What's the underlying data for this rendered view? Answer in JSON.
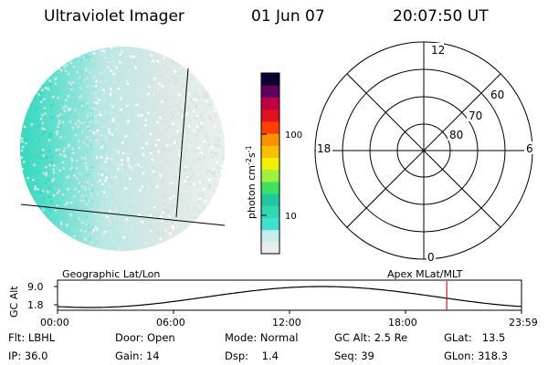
{
  "header": {
    "title": "Ultraviolet Imager",
    "date": "01 Jun 07",
    "time": "20:07:50 UT"
  },
  "colorbar": {
    "unit_base": "photon cm",
    "unit_exp1": "-2",
    "unit_mid": "s",
    "unit_exp2": "-1",
    "ticks": [
      "100",
      "10"
    ],
    "tick_values": [
      100,
      10
    ],
    "colors": [
      "#e8eef0",
      "#c8ecec",
      "#40e0d0",
      "#30d8b0",
      "#20c8a0",
      "#40e060",
      "#a0f040",
      "#f0f000",
      "#f8c000",
      "#f89000",
      "#ff4000",
      "#e01020",
      "#c00040",
      "#600060",
      "#100030"
    ]
  },
  "polar": {
    "mlt_labels": [
      "12",
      "18",
      "6",
      "0"
    ],
    "lat_labels": [
      "60",
      "70",
      "80"
    ],
    "lat_values": [
      60,
      70,
      80
    ]
  },
  "orbit": {
    "ylabel": "GC Alt",
    "yticks": [
      "9.0",
      "1.8"
    ],
    "ylim": [
      1.8,
      9.0
    ],
    "left_title": "Geographic Lat/Lon",
    "right_title": "Apex  MLat/MLT",
    "xticks": [
      "00:00",
      "06:00",
      "12:00",
      "18:00",
      "23:59"
    ],
    "marker_time": "20:07:50"
  },
  "info": {
    "filter_label": "Flt:",
    "filter_value": "LBHL",
    "ip_label": "IP:",
    "ip_value": "36.0",
    "door_label": "Door:",
    "door_value": "Open",
    "gain_label": "Gain:",
    "gain_value": "14",
    "mode_label": "Mode:",
    "mode_value": "Normal",
    "dsp_label": "Dsp:",
    "dsp_value": "1.4",
    "gcalt_label": "GC Alt:",
    "gcalt_value": "2.5 Re",
    "seq_label": "Seq:",
    "seq_value": "39",
    "glat_label": "GLat:",
    "glat_value": "13.5",
    "glon_label": "GLon:",
    "glon_value": "318.3"
  },
  "style": {
    "orbit_curve_color": "#000000",
    "marker_color": "#c02020",
    "earth_low_color": "#dce8e4",
    "earth_high_color": "#38d8c0"
  }
}
